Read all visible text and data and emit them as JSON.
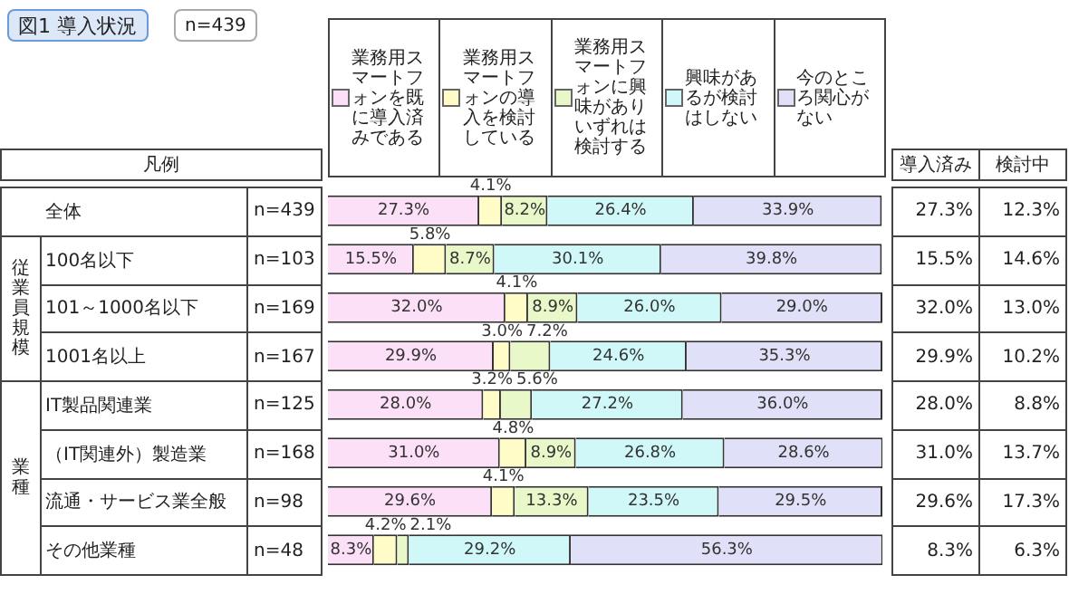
{
  "chart_data": {
    "type": "bar",
    "orientation": "horizontal",
    "stacked": true,
    "title": "図1 導入状況",
    "subtitle": "n=439",
    "legend_title": "凡例",
    "legend": "top",
    "tick_labels": false,
    "xlim": [
      0,
      100
    ],
    "categories": [
      "全体",
      "100名以下",
      "101～1000名以下",
      "1001名以上",
      "IT製品関連業",
      "（IT関連外）製造業",
      "流通・サービス業全般",
      "その他業種"
    ],
    "series": [
      {
        "name": "業務用スマートフォンを既に導入済みである",
        "color": "#fce0f8",
        "values": [
          27.3,
          15.5,
          32.0,
          29.9,
          28.0,
          31.0,
          29.6,
          8.3
        ],
        "value_labels": [
          "27.3%",
          "15.5%",
          "32.0%",
          "29.9%",
          "28.0%",
          "31.0%",
          "29.6%",
          "8.3%"
        ]
      },
      {
        "name": "業務用スマートフォンの導入を検討している",
        "color": "#fffcc8",
        "values": [
          4.1,
          5.8,
          4.1,
          3.0,
          3.2,
          4.8,
          4.1,
          4.2
        ],
        "value_labels": [
          "4.1%",
          "5.8%",
          "4.1%",
          "3.0%",
          "3.2%",
          "4.8%",
          "4.1%",
          "4.2%"
        ]
      },
      {
        "name": "業務用スマートフォンに興味がありいずれは検討する",
        "color": "#e8f8c8",
        "values": [
          8.2,
          8.7,
          8.9,
          7.2,
          5.6,
          8.9,
          13.3,
          2.1
        ],
        "value_labels": [
          "8.2%",
          "8.7%",
          "8.9%",
          "7.2%",
          "5.6%",
          "8.9%",
          "13.3%",
          "2.1%"
        ]
      },
      {
        "name": "興味があるが検討はしない",
        "color": "#d0f8f8",
        "values": [
          26.4,
          30.1,
          26.0,
          24.6,
          27.2,
          26.8,
          23.5,
          29.2
        ],
        "value_labels": [
          "26.4%",
          "30.1%",
          "26.0%",
          "24.6%",
          "27.2%",
          "26.8%",
          "23.5%",
          "29.2%"
        ]
      },
      {
        "name": "今のところ関心がない",
        "color": "#e0e0f8",
        "values": [
          33.9,
          39.8,
          29.0,
          35.3,
          36.0,
          28.6,
          29.5,
          56.3
        ],
        "value_labels": [
          "33.9%",
          "39.8%",
          "29.0%",
          "35.3%",
          "36.0%",
          "28.6%",
          "29.5%",
          "56.3%"
        ]
      }
    ],
    "annotations": [
      "導入済み",
      "検討中",
      "従業員規模",
      "業種",
      "n=439",
      "27.3%",
      "12.3%",
      "n=103",
      "15.5%",
      "14.6%",
      "n=169",
      "32.0%",
      "13.0%",
      "n=167",
      "29.9%",
      "10.2%",
      "n=125",
      "28.0%",
      "8.8%",
      "n=168",
      "31.0%",
      "13.7%",
      "n=98",
      "29.6%",
      "17.3%",
      "n=48",
      "8.3%",
      "6.3%"
    ]
  }
}
